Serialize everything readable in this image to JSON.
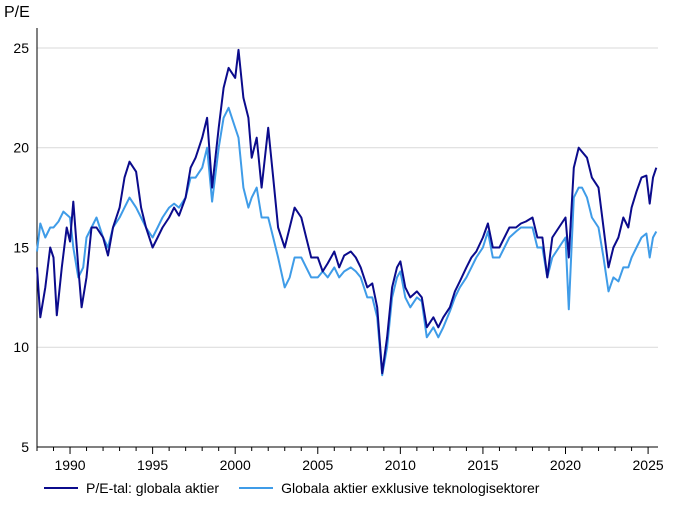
{
  "chart_data": {
    "type": "line",
    "title": "",
    "ylabel": "P/E",
    "xlabel": "",
    "ylim": [
      5,
      26
    ],
    "xlim": [
      1988,
      2025.6
    ],
    "yticks": [
      5,
      10,
      15,
      20,
      25
    ],
    "xticks": [
      1990,
      1995,
      2000,
      2005,
      2010,
      2015,
      2020,
      2025
    ],
    "grid": "horizontal",
    "legend_position": "bottom",
    "series": [
      {
        "name": "P/E-tal: globala aktier",
        "color": "#0b0b8c",
        "points": [
          [
            1988.0,
            14.0
          ],
          [
            1988.2,
            11.5
          ],
          [
            1988.5,
            13.0
          ],
          [
            1988.8,
            15.0
          ],
          [
            1989.0,
            14.5
          ],
          [
            1989.2,
            11.6
          ],
          [
            1989.5,
            14.0
          ],
          [
            1989.8,
            16.0
          ],
          [
            1990.0,
            15.3
          ],
          [
            1990.2,
            17.3
          ],
          [
            1990.5,
            14.0
          ],
          [
            1990.7,
            12.0
          ],
          [
            1991.0,
            13.5
          ],
          [
            1991.3,
            16.0
          ],
          [
            1991.6,
            16.0
          ],
          [
            1992.0,
            15.5
          ],
          [
            1992.3,
            14.6
          ],
          [
            1992.6,
            16.0
          ],
          [
            1993.0,
            17.0
          ],
          [
            1993.3,
            18.5
          ],
          [
            1993.6,
            19.3
          ],
          [
            1994.0,
            18.8
          ],
          [
            1994.3,
            17.0
          ],
          [
            1994.6,
            16.0
          ],
          [
            1995.0,
            15.0
          ],
          [
            1995.3,
            15.5
          ],
          [
            1995.6,
            16.0
          ],
          [
            1996.0,
            16.5
          ],
          [
            1996.3,
            17.0
          ],
          [
            1996.6,
            16.6
          ],
          [
            1997.0,
            17.5
          ],
          [
            1997.3,
            19.0
          ],
          [
            1997.6,
            19.5
          ],
          [
            1998.0,
            20.5
          ],
          [
            1998.3,
            21.5
          ],
          [
            1998.6,
            18.0
          ],
          [
            1999.0,
            21.0
          ],
          [
            1999.3,
            23.0
          ],
          [
            1999.6,
            24.0
          ],
          [
            2000.0,
            23.5
          ],
          [
            2000.2,
            24.9
          ],
          [
            2000.5,
            22.5
          ],
          [
            2000.8,
            21.5
          ],
          [
            2001.0,
            19.5
          ],
          [
            2001.3,
            20.5
          ],
          [
            2001.6,
            18.0
          ],
          [
            2002.0,
            21.0
          ],
          [
            2002.3,
            18.5
          ],
          [
            2002.6,
            16.0
          ],
          [
            2003.0,
            15.0
          ],
          [
            2003.3,
            16.0
          ],
          [
            2003.6,
            17.0
          ],
          [
            2004.0,
            16.5
          ],
          [
            2004.3,
            15.5
          ],
          [
            2004.6,
            14.5
          ],
          [
            2005.0,
            14.5
          ],
          [
            2005.3,
            13.8
          ],
          [
            2005.6,
            14.2
          ],
          [
            2006.0,
            14.8
          ],
          [
            2006.3,
            14.0
          ],
          [
            2006.6,
            14.6
          ],
          [
            2007.0,
            14.8
          ],
          [
            2007.3,
            14.5
          ],
          [
            2007.6,
            14.0
          ],
          [
            2008.0,
            13.0
          ],
          [
            2008.3,
            13.2
          ],
          [
            2008.6,
            12.0
          ],
          [
            2008.9,
            8.7
          ],
          [
            2009.2,
            10.5
          ],
          [
            2009.5,
            13.0
          ],
          [
            2009.8,
            14.0
          ],
          [
            2010.0,
            14.3
          ],
          [
            2010.3,
            13.0
          ],
          [
            2010.6,
            12.5
          ],
          [
            2011.0,
            12.8
          ],
          [
            2011.3,
            12.5
          ],
          [
            2011.6,
            11.0
          ],
          [
            2012.0,
            11.5
          ],
          [
            2012.3,
            11.0
          ],
          [
            2012.6,
            11.5
          ],
          [
            2013.0,
            12.0
          ],
          [
            2013.3,
            12.8
          ],
          [
            2013.6,
            13.3
          ],
          [
            2014.0,
            14.0
          ],
          [
            2014.3,
            14.5
          ],
          [
            2014.6,
            14.8
          ],
          [
            2015.0,
            15.5
          ],
          [
            2015.3,
            16.2
          ],
          [
            2015.6,
            15.0
          ],
          [
            2016.0,
            15.0
          ],
          [
            2016.3,
            15.5
          ],
          [
            2016.6,
            16.0
          ],
          [
            2017.0,
            16.0
          ],
          [
            2017.3,
            16.2
          ],
          [
            2017.6,
            16.3
          ],
          [
            2018.0,
            16.5
          ],
          [
            2018.3,
            15.5
          ],
          [
            2018.6,
            15.5
          ],
          [
            2018.9,
            13.5
          ],
          [
            2019.2,
            15.5
          ],
          [
            2019.6,
            16.0
          ],
          [
            2020.0,
            16.5
          ],
          [
            2020.2,
            14.5
          ],
          [
            2020.5,
            19.0
          ],
          [
            2020.8,
            20.0
          ],
          [
            2021.0,
            19.8
          ],
          [
            2021.3,
            19.5
          ],
          [
            2021.6,
            18.5
          ],
          [
            2022.0,
            18.0
          ],
          [
            2022.3,
            16.0
          ],
          [
            2022.6,
            14.0
          ],
          [
            2022.9,
            15.0
          ],
          [
            2023.2,
            15.5
          ],
          [
            2023.5,
            16.5
          ],
          [
            2023.8,
            16.0
          ],
          [
            2024.0,
            17.0
          ],
          [
            2024.3,
            17.8
          ],
          [
            2024.6,
            18.5
          ],
          [
            2024.9,
            18.6
          ],
          [
            2025.1,
            17.2
          ],
          [
            2025.3,
            18.5
          ],
          [
            2025.5,
            19.0
          ]
        ]
      },
      {
        "name": "Globala aktier exklusive teknologisektorer",
        "color": "#3f9ce8",
        "points": [
          [
            1988.0,
            14.8
          ],
          [
            1988.2,
            16.2
          ],
          [
            1988.5,
            15.5
          ],
          [
            1988.8,
            16.0
          ],
          [
            1989.0,
            16.0
          ],
          [
            1989.3,
            16.3
          ],
          [
            1989.6,
            16.8
          ],
          [
            1990.0,
            16.5
          ],
          [
            1990.2,
            15.0
          ],
          [
            1990.5,
            13.5
          ],
          [
            1990.8,
            14.0
          ],
          [
            1991.0,
            15.5
          ],
          [
            1991.3,
            16.0
          ],
          [
            1991.6,
            16.5
          ],
          [
            1992.0,
            15.5
          ],
          [
            1992.3,
            15.0
          ],
          [
            1992.6,
            16.0
          ],
          [
            1993.0,
            16.5
          ],
          [
            1993.3,
            17.0
          ],
          [
            1993.6,
            17.5
          ],
          [
            1994.0,
            17.0
          ],
          [
            1994.3,
            16.5
          ],
          [
            1994.6,
            16.0
          ],
          [
            1995.0,
            15.5
          ],
          [
            1995.3,
            16.0
          ],
          [
            1995.6,
            16.5
          ],
          [
            1996.0,
            17.0
          ],
          [
            1996.3,
            17.2
          ],
          [
            1996.6,
            17.0
          ],
          [
            1997.0,
            17.5
          ],
          [
            1997.3,
            18.5
          ],
          [
            1997.6,
            18.5
          ],
          [
            1998.0,
            19.0
          ],
          [
            1998.3,
            20.0
          ],
          [
            1998.6,
            17.3
          ],
          [
            1999.0,
            20.0
          ],
          [
            1999.3,
            21.5
          ],
          [
            1999.6,
            22.0
          ],
          [
            2000.0,
            21.0
          ],
          [
            2000.2,
            20.5
          ],
          [
            2000.5,
            18.0
          ],
          [
            2000.8,
            17.0
          ],
          [
            2001.0,
            17.5
          ],
          [
            2001.3,
            18.0
          ],
          [
            2001.6,
            16.5
          ],
          [
            2002.0,
            16.5
          ],
          [
            2002.3,
            15.5
          ],
          [
            2002.6,
            14.5
          ],
          [
            2003.0,
            13.0
          ],
          [
            2003.3,
            13.5
          ],
          [
            2003.6,
            14.5
          ],
          [
            2004.0,
            14.5
          ],
          [
            2004.3,
            14.0
          ],
          [
            2004.6,
            13.5
          ],
          [
            2005.0,
            13.5
          ],
          [
            2005.3,
            13.8
          ],
          [
            2005.6,
            13.5
          ],
          [
            2006.0,
            14.0
          ],
          [
            2006.3,
            13.5
          ],
          [
            2006.6,
            13.8
          ],
          [
            2007.0,
            14.0
          ],
          [
            2007.3,
            13.8
          ],
          [
            2007.6,
            13.5
          ],
          [
            2008.0,
            12.5
          ],
          [
            2008.3,
            12.5
          ],
          [
            2008.6,
            11.5
          ],
          [
            2008.9,
            8.6
          ],
          [
            2009.2,
            10.0
          ],
          [
            2009.5,
            12.5
          ],
          [
            2009.8,
            13.5
          ],
          [
            2010.0,
            13.8
          ],
          [
            2010.3,
            12.5
          ],
          [
            2010.6,
            12.0
          ],
          [
            2011.0,
            12.5
          ],
          [
            2011.3,
            12.3
          ],
          [
            2011.6,
            10.5
          ],
          [
            2012.0,
            11.0
          ],
          [
            2012.3,
            10.5
          ],
          [
            2012.6,
            11.0
          ],
          [
            2013.0,
            11.8
          ],
          [
            2013.3,
            12.5
          ],
          [
            2013.6,
            13.0
          ],
          [
            2014.0,
            13.5
          ],
          [
            2014.3,
            14.0
          ],
          [
            2014.6,
            14.5
          ],
          [
            2015.0,
            15.0
          ],
          [
            2015.3,
            15.8
          ],
          [
            2015.6,
            14.5
          ],
          [
            2016.0,
            14.5
          ],
          [
            2016.3,
            15.0
          ],
          [
            2016.6,
            15.5
          ],
          [
            2017.0,
            15.8
          ],
          [
            2017.3,
            16.0
          ],
          [
            2017.6,
            16.0
          ],
          [
            2018.0,
            16.0
          ],
          [
            2018.3,
            15.0
          ],
          [
            2018.6,
            15.0
          ],
          [
            2018.9,
            13.5
          ],
          [
            2019.2,
            14.5
          ],
          [
            2019.6,
            15.0
          ],
          [
            2020.0,
            15.5
          ],
          [
            2020.2,
            11.9
          ],
          [
            2020.5,
            17.5
          ],
          [
            2020.8,
            18.0
          ],
          [
            2021.0,
            18.0
          ],
          [
            2021.3,
            17.5
          ],
          [
            2021.6,
            16.5
          ],
          [
            2022.0,
            16.0
          ],
          [
            2022.3,
            14.5
          ],
          [
            2022.6,
            12.8
          ],
          [
            2022.9,
            13.5
          ],
          [
            2023.2,
            13.3
          ],
          [
            2023.5,
            14.0
          ],
          [
            2023.8,
            14.0
          ],
          [
            2024.0,
            14.5
          ],
          [
            2024.3,
            15.0
          ],
          [
            2024.6,
            15.5
          ],
          [
            2024.9,
            15.7
          ],
          [
            2025.1,
            14.5
          ],
          [
            2025.3,
            15.5
          ],
          [
            2025.5,
            15.8
          ]
        ]
      }
    ]
  }
}
